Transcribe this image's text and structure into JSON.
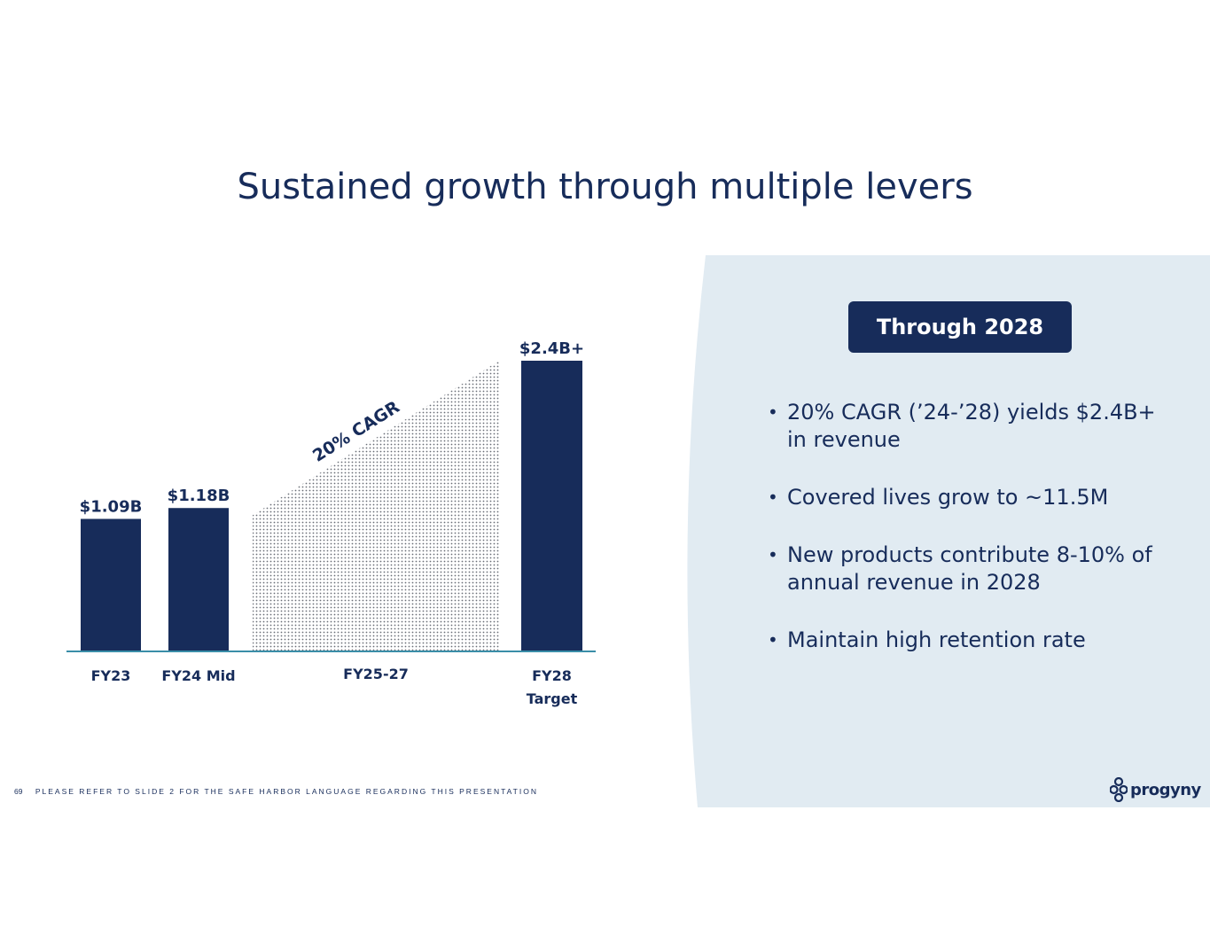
{
  "title": "Sustained growth through multiple levers",
  "colors": {
    "navy": "#172c5a",
    "panel": "#e1ebf2",
    "axis": "#3a8ea8",
    "white": "#ffffff"
  },
  "panel": {
    "badge": "Through 2028",
    "bullets": [
      "20% CAGR (’24-’28) yields $2.4B+ in revenue",
      "Covered lives grow to ~11.5M",
      "New products contribute 8-10% of annual revenue in 2028",
      "Maintain high retention rate"
    ]
  },
  "footer": {
    "page_number": "69",
    "disclaimer": "PLEASE REFER TO SLIDE 2 FOR THE SAFE HARBOR LANGUAGE REGARDING THIS PRESENTATION"
  },
  "logo": {
    "icon": "progyny-logo-icon",
    "text": "progyny"
  },
  "chart_data": {
    "type": "bar",
    "categories": [
      "FY23",
      "FY24 Mid",
      "FY25-27",
      "FY28 Target"
    ],
    "values": [
      1.09,
      1.18,
      null,
      2.4
    ],
    "data_labels": [
      "$1.09B",
      "$1.18B",
      "",
      "$2.4B+"
    ],
    "unit": "$B",
    "ylim": [
      0,
      2.4
    ],
    "projection": {
      "category": "FY25-27",
      "from": 1.18,
      "to": 2.4,
      "label": "20% CAGR"
    },
    "title": "",
    "xlabel": "",
    "ylabel": ""
  }
}
